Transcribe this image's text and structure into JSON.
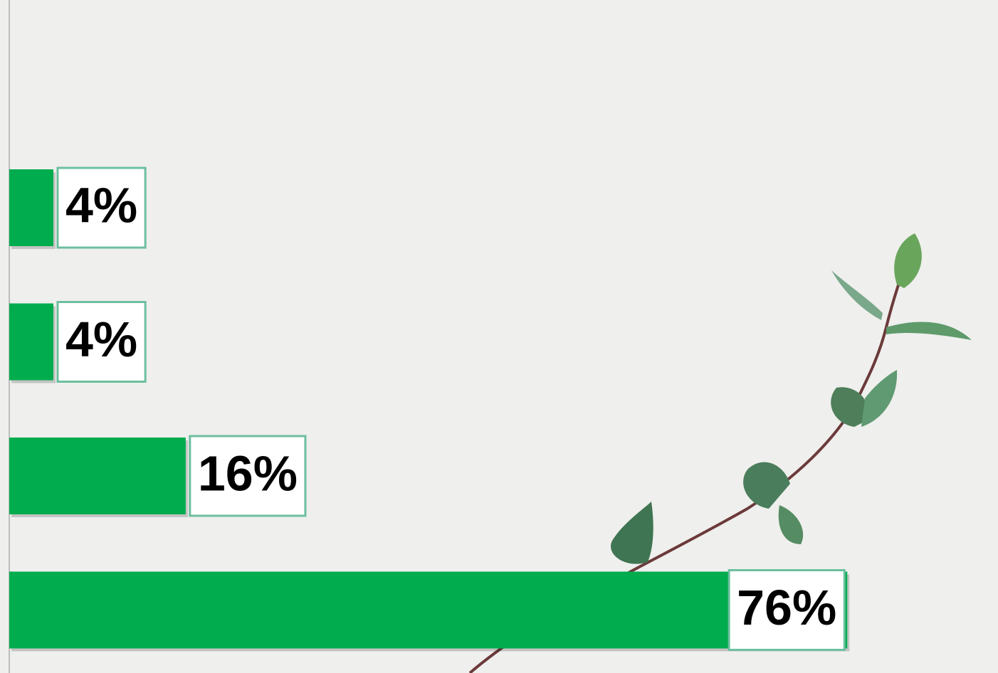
{
  "chart_data": {
    "type": "bar",
    "orientation": "horizontal",
    "values": [
      4,
      4,
      16,
      76
    ],
    "value_labels": [
      "4%",
      "4%",
      "16%",
      "76%"
    ],
    "color": "#00ac4e"
  }
}
